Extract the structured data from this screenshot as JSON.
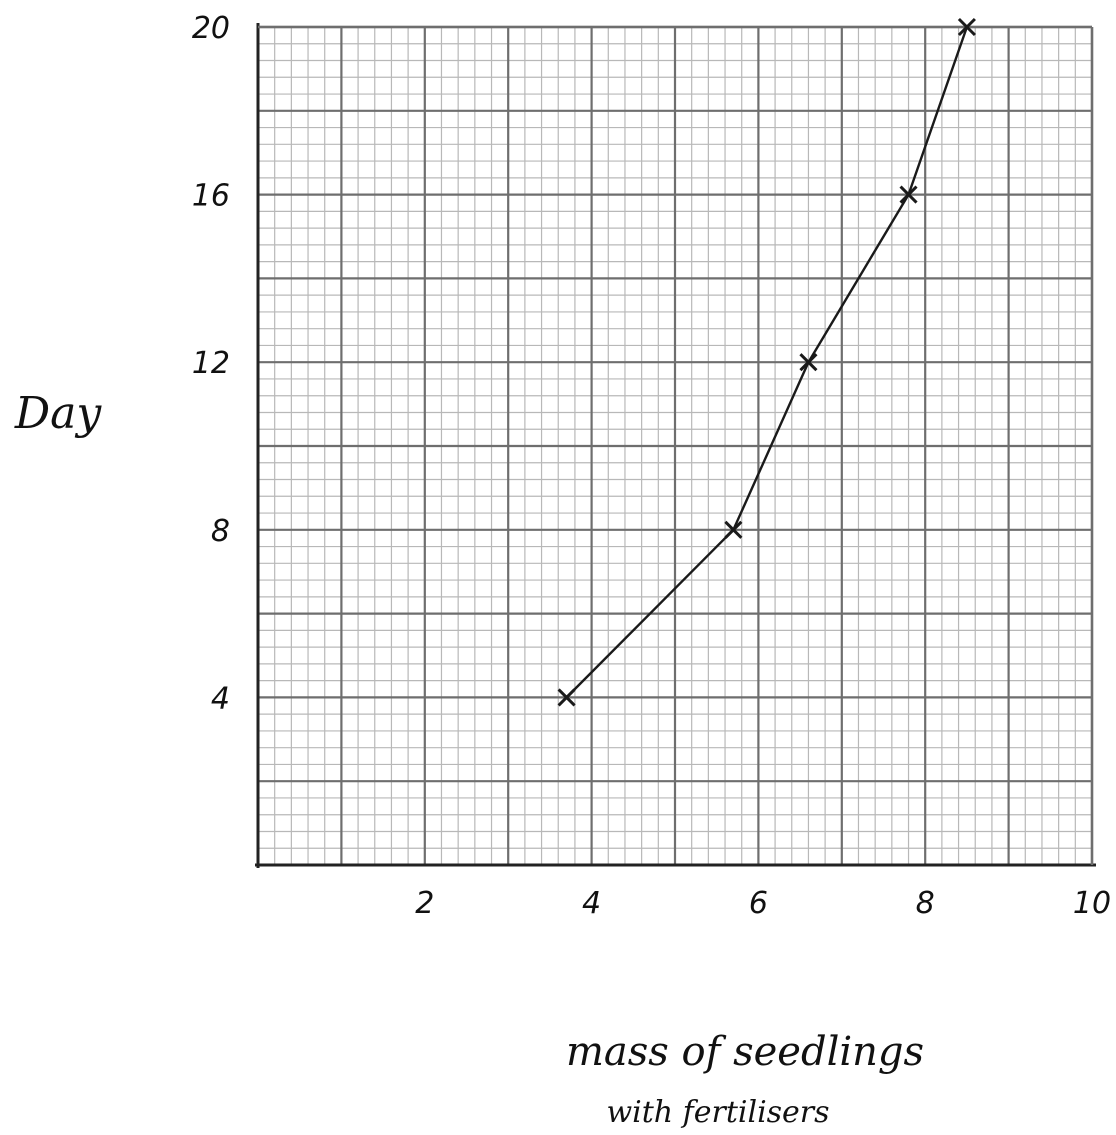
{
  "chart_data": {
    "type": "line",
    "title": "",
    "xlabel_line1": "mass of seedlings",
    "xlabel_line2": "with fertilisers",
    "ylabel": "Day",
    "xlim": [
      0,
      10
    ],
    "ylim": [
      0,
      20
    ],
    "x_ticks": [
      2,
      4,
      6,
      8,
      10
    ],
    "x_tick_labels": [
      "2",
      "4",
      "6",
      "8",
      "10"
    ],
    "y_ticks": [
      4,
      8,
      12,
      16,
      20
    ],
    "y_tick_labels": [
      "4",
      "8",
      "12",
      "16",
      "20"
    ],
    "grid": true,
    "series": [
      {
        "x": [
          3.7,
          5.7,
          6.6,
          7.8,
          8.5
        ],
        "y": [
          4,
          8,
          12,
          16,
          20
        ],
        "marker": "x"
      }
    ],
    "colors": {
      "paper": "#ffffff",
      "minor_grid": "#b8b8b8",
      "major_grid": "#6e6e6e",
      "axis": "#222222",
      "ink": "#1a1a1a"
    }
  }
}
